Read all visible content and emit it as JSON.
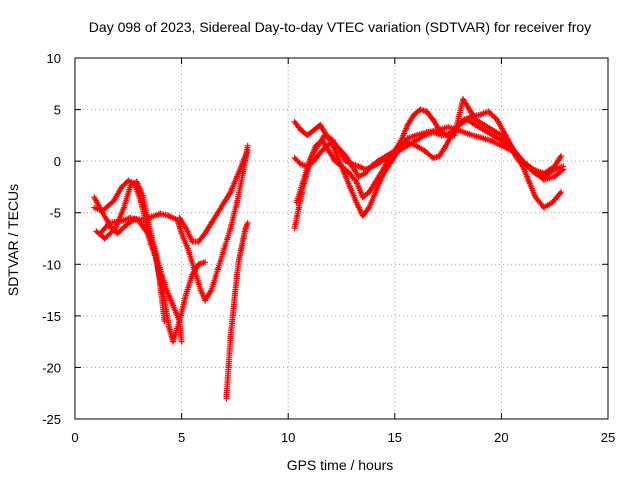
{
  "chart_data": {
    "type": "scatter",
    "title": "Day 098 of 2023, Sidereal Day-to-day VTEC variation (SDTVAR) for receiver froy",
    "xlabel": "GPS time / hours",
    "ylabel": "SDTVAR / TECUs",
    "xlim": [
      0,
      25
    ],
    "ylim": [
      -25,
      10
    ],
    "xticks": [
      "0",
      "5",
      "10",
      "15",
      "20",
      "25"
    ],
    "yticks": [
      "10",
      "5",
      "0",
      "-5",
      "-10",
      "-15",
      "-20",
      "-25"
    ],
    "grid": true,
    "marker": "+",
    "color": "#ff0000",
    "series": [
      {
        "values": [
          [
            0.9,
            -4.5
          ],
          [
            1.3,
            -4.8
          ],
          [
            1.8,
            -3.9
          ],
          [
            2.2,
            -2.5
          ],
          [
            2.5,
            -1.9
          ],
          [
            2.8,
            -2.2
          ],
          [
            3.1,
            -4.0
          ],
          [
            3.4,
            -6.5
          ],
          [
            3.7,
            -8.5
          ],
          [
            4.0,
            -10.5
          ],
          [
            4.3,
            -12.5
          ],
          [
            4.6,
            -14.0
          ],
          [
            4.9,
            -15.5
          ],
          [
            5.0,
            -17.5
          ]
        ]
      },
      {
        "values": [
          [
            1.0,
            -6.8
          ],
          [
            1.4,
            -7.5
          ],
          [
            1.9,
            -6.5
          ],
          [
            2.3,
            -4.5
          ],
          [
            2.6,
            -2.4
          ],
          [
            2.9,
            -2.0
          ],
          [
            3.2,
            -3.5
          ],
          [
            3.5,
            -6.5
          ],
          [
            3.8,
            -9.0
          ],
          [
            4.0,
            -12.0
          ],
          [
            4.2,
            -15.5
          ]
        ]
      },
      {
        "values": [
          [
            0.9,
            -3.5
          ],
          [
            1.3,
            -5.0
          ],
          [
            1.7,
            -6.5
          ],
          [
            2.0,
            -7.0
          ],
          [
            2.4,
            -6.2
          ],
          [
            2.8,
            -5.6
          ],
          [
            3.2,
            -5.7
          ],
          [
            3.6,
            -5.4
          ],
          [
            4.0,
            -5.1
          ],
          [
            4.4,
            -5.3
          ],
          [
            4.8,
            -5.7
          ],
          [
            5.0,
            -7.0
          ],
          [
            5.3,
            -8.5
          ],
          [
            5.6,
            -10.5
          ],
          [
            5.9,
            -12.5
          ],
          [
            6.1,
            -13.5
          ],
          [
            6.4,
            -12.5
          ],
          [
            6.7,
            -10.5
          ],
          [
            7.0,
            -8.5
          ],
          [
            7.3,
            -6.5
          ],
          [
            7.6,
            -4.0
          ],
          [
            7.9,
            -1.0
          ],
          [
            8.1,
            1.5
          ]
        ]
      },
      {
        "values": [
          [
            1.2,
            -7.0
          ],
          [
            1.6,
            -6.0
          ],
          [
            2.2,
            -5.8
          ],
          [
            2.6,
            -5.5
          ],
          [
            3.0,
            -5.8
          ],
          [
            3.4,
            -7.0
          ],
          [
            3.8,
            -9.5
          ],
          [
            4.2,
            -13.5
          ],
          [
            4.4,
            -16.0
          ],
          [
            4.6,
            -17.5
          ],
          [
            4.9,
            -15.5
          ],
          [
            5.2,
            -13.0
          ],
          [
            5.5,
            -11.0
          ],
          [
            5.8,
            -10.0
          ],
          [
            6.1,
            -9.8
          ]
        ]
      },
      {
        "values": [
          [
            4.9,
            -5.5
          ],
          [
            5.2,
            -6.5
          ],
          [
            5.5,
            -7.8
          ],
          [
            5.8,
            -7.8
          ],
          [
            6.1,
            -7.0
          ],
          [
            6.4,
            -6.0
          ],
          [
            6.7,
            -5.0
          ],
          [
            7.0,
            -4.0
          ],
          [
            7.3,
            -3.0
          ],
          [
            7.6,
            -1.5
          ],
          [
            7.9,
            0.0
          ],
          [
            8.1,
            1.0
          ]
        ]
      },
      {
        "values": [
          [
            7.1,
            -23.0
          ],
          [
            7.2,
            -20.0
          ],
          [
            7.3,
            -17.0
          ],
          [
            7.4,
            -15.0
          ],
          [
            7.5,
            -13.0
          ],
          [
            7.6,
            -11.0
          ],
          [
            7.7,
            -9.5
          ],
          [
            7.8,
            -8.5
          ],
          [
            7.9,
            -7.5
          ],
          [
            8.0,
            -6.5
          ],
          [
            8.1,
            -6.0
          ]
        ]
      },
      {
        "values": [
          [
            10.3,
            -6.5
          ],
          [
            10.5,
            -4.5
          ],
          [
            10.7,
            -2.5
          ],
          [
            10.9,
            -1.0
          ],
          [
            11.1,
            0.5
          ],
          [
            11.4,
            1.5
          ],
          [
            11.7,
            2.5
          ],
          [
            12.0,
            2.0
          ],
          [
            12.3,
            0.5
          ],
          [
            12.6,
            -1.0
          ],
          [
            12.9,
            -2.5
          ],
          [
            13.2,
            -4.0
          ],
          [
            13.5,
            -5.3
          ],
          [
            13.8,
            -4.5
          ],
          [
            14.1,
            -3.0
          ],
          [
            14.4,
            -1.5
          ],
          [
            14.7,
            -0.5
          ],
          [
            15.0,
            0.5
          ],
          [
            15.3,
            1.5
          ],
          [
            15.6,
            2.2
          ],
          [
            16.0,
            2.5
          ],
          [
            16.5,
            2.8
          ],
          [
            17.0,
            3.0
          ],
          [
            17.5,
            3.3
          ],
          [
            18.0,
            3.0
          ],
          [
            18.5,
            2.6
          ],
          [
            19.0,
            2.3
          ],
          [
            19.5,
            2.0
          ],
          [
            20.0,
            1.5
          ],
          [
            20.5,
            1.0
          ],
          [
            21.0,
            -0.5
          ],
          [
            21.3,
            -2.0
          ],
          [
            21.6,
            -3.5
          ],
          [
            22.0,
            -4.5
          ],
          [
            22.4,
            -4.0
          ],
          [
            22.8,
            -3.0
          ]
        ]
      },
      {
        "values": [
          [
            10.4,
            -4.0
          ],
          [
            10.7,
            -2.0
          ],
          [
            11.0,
            0.0
          ],
          [
            11.3,
            1.5
          ],
          [
            11.6,
            2.0
          ],
          [
            11.9,
            1.0
          ],
          [
            12.2,
            0.0
          ],
          [
            12.5,
            -0.5
          ],
          [
            12.8,
            -1.0
          ],
          [
            13.2,
            -2.0
          ],
          [
            13.5,
            -3.5
          ],
          [
            13.8,
            -3.0
          ],
          [
            14.1,
            -2.0
          ],
          [
            14.4,
            -1.0
          ],
          [
            14.8,
            0.5
          ],
          [
            15.2,
            1.5
          ],
          [
            15.6,
            1.8
          ],
          [
            16.0,
            1.5
          ],
          [
            16.4,
            1.0
          ],
          [
            16.8,
            0.3
          ],
          [
            17.1,
            0.5
          ],
          [
            17.4,
            1.5
          ],
          [
            17.8,
            3.0
          ],
          [
            18.2,
            4.0
          ],
          [
            18.6,
            4.3
          ],
          [
            19.0,
            4.5
          ],
          [
            19.4,
            4.8
          ],
          [
            19.8,
            4.0
          ],
          [
            20.2,
            2.5
          ],
          [
            20.6,
            1.0
          ],
          [
            21.0,
            0.0
          ],
          [
            21.5,
            -0.8
          ],
          [
            22.0,
            -1.2
          ],
          [
            22.5,
            -0.5
          ],
          [
            22.8,
            0.5
          ]
        ]
      },
      {
        "values": [
          [
            10.3,
            3.8
          ],
          [
            10.6,
            3.0
          ],
          [
            10.9,
            2.5
          ],
          [
            11.2,
            3.0
          ],
          [
            11.5,
            3.5
          ],
          [
            11.8,
            2.5
          ],
          [
            12.1,
            2.0
          ],
          [
            12.4,
            1.0
          ],
          [
            12.7,
            0.0
          ],
          [
            13.0,
            -0.3
          ],
          [
            13.3,
            -0.5
          ],
          [
            13.6,
            -0.8
          ],
          [
            14.0,
            -0.5
          ],
          [
            14.4,
            0.0
          ],
          [
            14.8,
            0.5
          ],
          [
            15.2,
            1.0
          ],
          [
            15.6,
            1.5
          ],
          [
            16.0,
            2.0
          ],
          [
            16.4,
            2.5
          ],
          [
            16.8,
            2.8
          ],
          [
            17.2,
            2.5
          ],
          [
            17.6,
            2.7
          ],
          [
            18.0,
            3.5
          ],
          [
            18.4,
            4.0
          ],
          [
            18.8,
            3.5
          ],
          [
            19.2,
            3.0
          ],
          [
            19.6,
            2.5
          ],
          [
            20.0,
            2.0
          ],
          [
            20.5,
            1.0
          ],
          [
            21.0,
            0.0
          ],
          [
            21.5,
            -1.0
          ],
          [
            22.0,
            -1.8
          ],
          [
            22.5,
            -1.5
          ],
          [
            22.9,
            -0.8
          ]
        ]
      },
      {
        "values": [
          [
            10.3,
            0.3
          ],
          [
            10.6,
            -0.3
          ],
          [
            10.9,
            -0.5
          ],
          [
            11.2,
            0.0
          ],
          [
            11.5,
            0.8
          ],
          [
            11.8,
            1.5
          ],
          [
            12.1,
            1.8
          ],
          [
            12.4,
            1.2
          ],
          [
            12.7,
            0.5
          ],
          [
            13.0,
            -0.5
          ],
          [
            13.3,
            -1.5
          ],
          [
            13.6,
            -1.2
          ],
          [
            13.9,
            -0.5
          ],
          [
            14.2,
            0.0
          ],
          [
            14.6,
            0.5
          ],
          [
            15.0,
            1.0
          ],
          [
            15.3,
            2.0
          ],
          [
            15.6,
            3.5
          ],
          [
            15.9,
            4.5
          ],
          [
            16.2,
            5.0
          ],
          [
            16.5,
            4.8
          ],
          [
            16.8,
            4.0
          ],
          [
            17.1,
            3.0
          ],
          [
            17.4,
            2.5
          ],
          [
            17.8,
            2.5
          ],
          [
            18.2,
            6.0
          ],
          [
            18.5,
            5.0
          ],
          [
            18.8,
            4.0
          ],
          [
            19.2,
            3.5
          ],
          [
            19.6,
            3.0
          ],
          [
            20.0,
            2.5
          ],
          [
            20.4,
            1.5
          ],
          [
            20.8,
            0.5
          ],
          [
            21.2,
            -0.5
          ],
          [
            21.6,
            -1.2
          ],
          [
            22.0,
            -1.5
          ],
          [
            22.5,
            -0.8
          ],
          [
            22.9,
            -0.5
          ]
        ]
      }
    ]
  }
}
